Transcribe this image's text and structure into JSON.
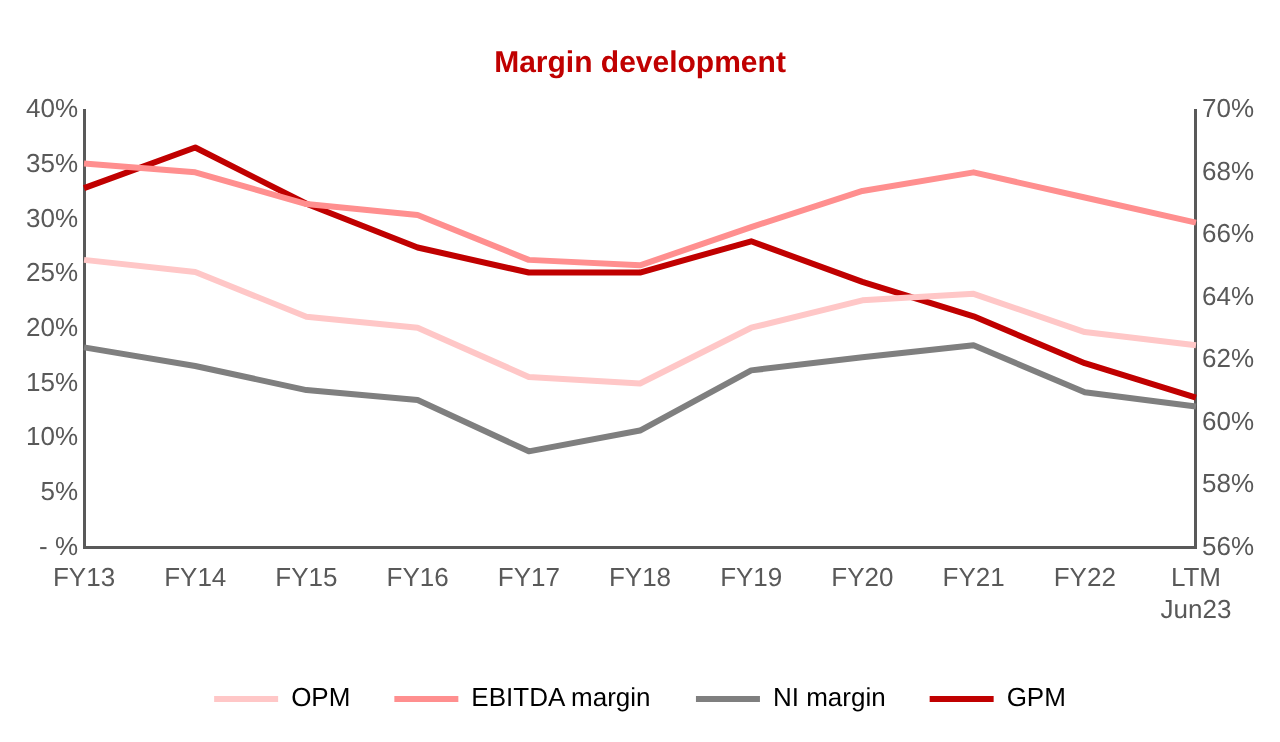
{
  "chart_data": {
    "type": "line",
    "title": "Margin development",
    "categories": [
      "FY13",
      "FY14",
      "FY15",
      "FY16",
      "FY17",
      "FY18",
      "FY19",
      "FY20",
      "FY21",
      "FY22",
      "LTM\nJun23"
    ],
    "series": [
      {
        "name": "OPM",
        "color": "#ffc7c7",
        "values": [
          26.3,
          25.2,
          21.1,
          20.1,
          15.6,
          15.0,
          20.1,
          22.6,
          23.2,
          19.7,
          18.5
        ]
      },
      {
        "name": "EBITDA margin",
        "color": "#ff8f8f",
        "values": [
          35.1,
          34.3,
          31.4,
          30.4,
          26.3,
          25.8,
          29.3,
          32.6,
          34.3,
          32.0,
          29.7
        ]
      },
      {
        "name": "NI margin",
        "color": "#7f7f7f",
        "values": [
          18.3,
          16.6,
          14.4,
          13.5,
          8.8,
          10.7,
          16.2,
          17.4,
          18.5,
          14.2,
          12.9
        ]
      },
      {
        "name": "GPM",
        "color": "#c00000",
        "axis": "y2",
        "values": [
          67.5,
          68.8,
          67.0,
          65.6,
          64.8,
          64.8,
          65.8,
          64.5,
          63.4,
          61.9,
          60.8
        ]
      }
    ],
    "ylim": [
      0,
      40
    ],
    "yticks": [
      {
        "value": 0,
        "label": "- %"
      },
      {
        "value": 5,
        "label": "5%"
      },
      {
        "value": 10,
        "label": "10%"
      },
      {
        "value": 15,
        "label": "15%"
      },
      {
        "value": 20,
        "label": "20%"
      },
      {
        "value": 25,
        "label": "25%"
      },
      {
        "value": 30,
        "label": "30%"
      },
      {
        "value": 35,
        "label": "35%"
      },
      {
        "value": 40,
        "label": "40%"
      }
    ],
    "y2lim": [
      56,
      70
    ],
    "y2ticks": [
      {
        "value": 56,
        "label": "56%"
      },
      {
        "value": 58,
        "label": "58%"
      },
      {
        "value": 60,
        "label": "60%"
      },
      {
        "value": 62,
        "label": "62%"
      },
      {
        "value": 64,
        "label": "64%"
      },
      {
        "value": 66,
        "label": "66%"
      },
      {
        "value": 68,
        "label": "68%"
      },
      {
        "value": 70,
        "label": "70%"
      }
    ],
    "grid": false,
    "legend": "bottom",
    "marker": "none",
    "line_style": "solid"
  }
}
